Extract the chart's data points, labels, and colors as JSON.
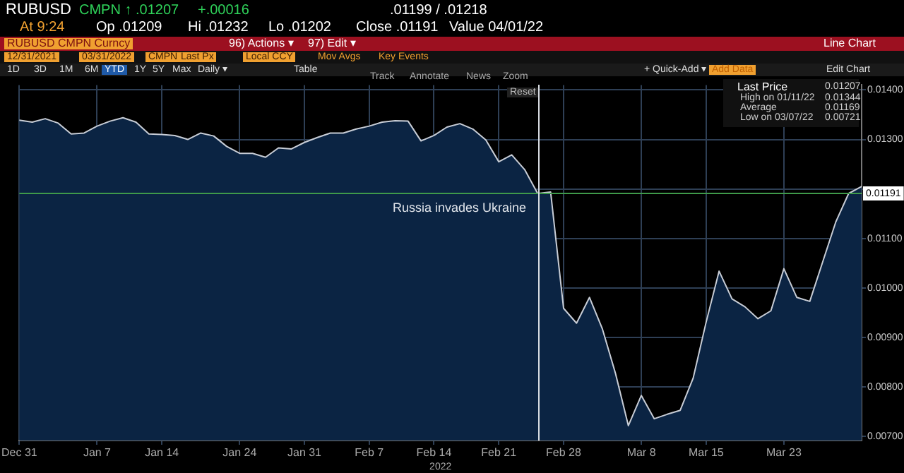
{
  "chart_data": {
    "type": "area",
    "title": "RUBUSD",
    "xlabel": "2022",
    "categories": [
      "Dec 31",
      null,
      null,
      null,
      null,
      null,
      "Jan 7",
      null,
      null,
      null,
      null,
      "Jan 14",
      null,
      null,
      null,
      null,
      null,
      "Jan 24",
      null,
      null,
      null,
      null,
      "Jan 31",
      null,
      null,
      null,
      null,
      "Feb 7",
      null,
      null,
      null,
      null,
      "Feb 14",
      null,
      null,
      null,
      null,
      "Feb 21",
      null,
      null,
      null,
      null,
      "Feb 28",
      null,
      null,
      null,
      null,
      null,
      "Mar 8",
      null,
      null,
      null,
      null,
      "Mar 15",
      null,
      null,
      null,
      null,
      null,
      "Mar 23",
      null,
      null,
      null,
      null,
      null,
      null
    ],
    "series": [
      {
        "color": "#c8cdd6",
        "values": [
          0.01339,
          0.01335,
          0.01342,
          0.01333,
          0.01311,
          0.01313,
          0.01327,
          0.01337,
          0.01344,
          0.01335,
          0.01311,
          0.0131,
          0.01308,
          0.013,
          0.01313,
          0.01307,
          0.01286,
          0.01272,
          0.01272,
          0.01264,
          0.01283,
          0.01281,
          0.01294,
          0.01304,
          0.01313,
          0.01313,
          0.01321,
          0.01327,
          0.01335,
          0.01338,
          0.01337,
          0.01297,
          0.01308,
          0.01325,
          0.01332,
          0.01321,
          0.01299,
          0.01255,
          0.01269,
          0.01239,
          0.01191,
          0.01194,
          0.00959,
          0.00929,
          0.00981,
          0.00917,
          0.00828,
          0.00722,
          0.00783,
          0.00736,
          0.00745,
          0.00753,
          0.00818,
          0.00931,
          0.01034,
          0.00978,
          0.00962,
          0.00938,
          0.00954,
          0.01039,
          0.00981,
          0.00973,
          0.01053,
          0.01133,
          0.01191,
          0.01205
        ]
      }
    ],
    "ylim": [
      0.00692,
      0.0141
    ],
    "yticks": [
      {
        "value": 0.007,
        "label": "0.00700"
      },
      {
        "value": 0.008,
        "label": "0.00800"
      },
      {
        "value": 0.009,
        "label": "0.00900"
      },
      {
        "value": 0.01,
        "label": "0.01000"
      },
      {
        "value": 0.011,
        "label": "0.01100"
      },
      {
        "value": 0.012,
        "label": null
      },
      {
        "value": 0.013,
        "label": "0.01300"
      },
      {
        "value": 0.014,
        "label": "0.01400"
      }
    ],
    "grid": true,
    "legend": false,
    "ref_lines": [
      {
        "axis": "y",
        "value": 0.01191,
        "label": "0.01191",
        "color": "#3f9a4a"
      }
    ],
    "annotations": [
      "CMPN ↑ .01207",
      "+.00016",
      ".01199 / .01218",
      "At 9:24",
      "Op .01209",
      "Hi .01232",
      "Lo .01202",
      "Close .01191",
      "Value 04/01/22",
      "RUBUSD CMPN Curncy",
      "96) Actions ▾",
      "97) Edit ▾",
      "Line Chart",
      "12/31/2021",
      "03/31/2022",
      "CMPN",
      "Last Px",
      "Local CCY",
      "Mov Avgs",
      "Key Events",
      "1D",
      "3D",
      "1M",
      "6M",
      "YTD",
      "1Y",
      "5Y",
      "Max",
      "Daily ▾",
      "Table",
      "+ Quick-Add ▾",
      "Add Data",
      "Edit Chart",
      "Track",
      "Annotate",
      "News",
      "Zoom",
      "Reset",
      "Last Price",
      "0.01207",
      "High on 01/11/22",
      "0.01344",
      "Average",
      "0.01169",
      "Low on 03/07/22",
      "0.00721",
      "Russia invades Ukraine"
    ]
  }
}
